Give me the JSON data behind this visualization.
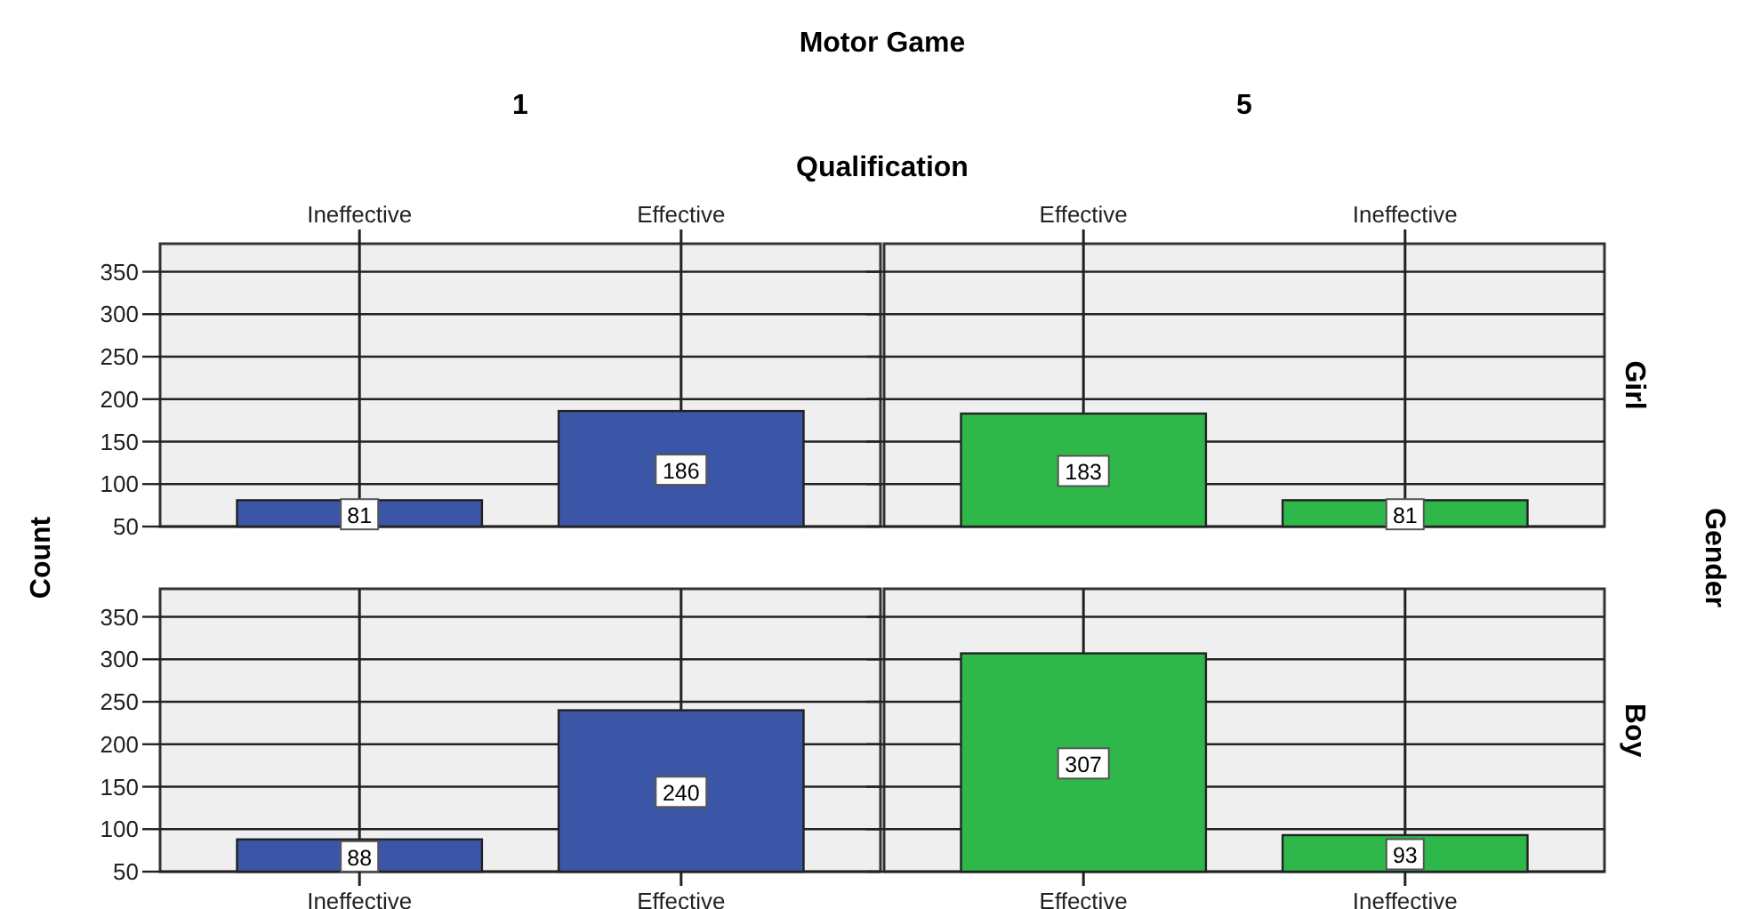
{
  "chart_data": [
    {
      "type": "bar",
      "title": "1",
      "annotations": [
        "Motor Game"
      ],
      "xlabel": "Qualification",
      "ylabel": "Count",
      "categories": [
        "Ineffective",
        "Effective"
      ],
      "series": [
        {
          "color": "#3b56a6",
          "values": [
            81,
            186
          ]
        }
      ],
      "ylim": [
        50,
        383
      ],
      "yticks": [
        50,
        100,
        150,
        200,
        250,
        300,
        350
      ],
      "grid": true,
      "data_labels": true
    },
    {
      "type": "bar",
      "title": "5",
      "annotations": [
        "Gender"
      ],
      "y2label": "Girl",
      "categories": [
        "Effective",
        "Ineffective"
      ],
      "series": [
        {
          "color": "#2eb84a",
          "values": [
            183,
            81
          ]
        }
      ],
      "ylim": [
        50,
        383
      ],
      "yticks": [
        50,
        100,
        150,
        200,
        250,
        300,
        350
      ],
      "grid": true,
      "data_labels": true,
      "tick_labels": "x"
    },
    {
      "type": "bar",
      "categories": [
        "Ineffective",
        "Effective"
      ],
      "series": [
        {
          "color": "#3b56a6",
          "values": [
            88,
            240
          ]
        }
      ],
      "ylim": [
        50,
        383
      ],
      "yticks": [
        50,
        100,
        150,
        200,
        250,
        300,
        350
      ],
      "grid": true,
      "data_labels": true
    },
    {
      "type": "bar",
      "y2label": "Boy",
      "categories": [
        "Effective",
        "Ineffective"
      ],
      "series": [
        {
          "color": "#2eb84a",
          "values": [
            307,
            93
          ]
        }
      ],
      "ylim": [
        50,
        383
      ],
      "yticks": [
        50,
        100,
        150,
        200,
        250,
        300,
        350
      ],
      "grid": true,
      "data_labels": true,
      "tick_labels": "x"
    }
  ]
}
